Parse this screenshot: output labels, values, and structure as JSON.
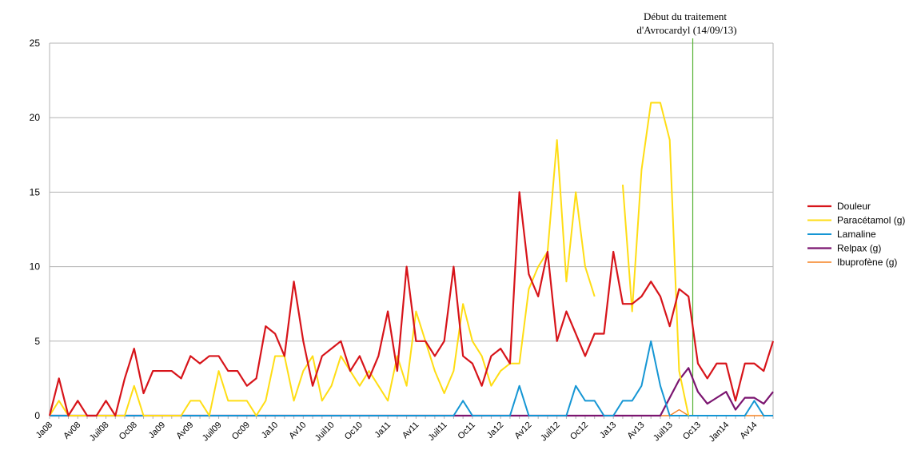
{
  "chart_data": {
    "type": "line",
    "title": "",
    "xlabel": "",
    "ylabel": "",
    "ylim": [
      0,
      25
    ],
    "yticks": [
      0,
      5,
      10,
      15,
      20,
      25
    ],
    "grid": true,
    "legend_position": "right",
    "x_tick_labels": [
      "Ja08",
      "Av08",
      "Juil08",
      "Oc08",
      "Ja09",
      "Av09",
      "Juil09",
      "Oc09",
      "Ja10",
      "Av10",
      "Juil10",
      "Oc10",
      "Ja11",
      "Av11",
      "Juil11",
      "Oc11",
      "Ja12",
      "Av12",
      "Juil12",
      "Oc12",
      "Ja13",
      "Av13",
      "Juil13",
      "Oc13",
      "Jan14",
      "Av14"
    ],
    "annotation": {
      "lines": [
        "Début du traitement",
        "d'Avrocardyl  (14/09/13)"
      ],
      "x_month_index": 68.45,
      "color": "#55b233"
    },
    "series": [
      {
        "name": "Douleur",
        "color": "#d7141a",
        "values": [
          0,
          2.5,
          0,
          1,
          0,
          0,
          1,
          0,
          2.5,
          4.5,
          1.5,
          3,
          3,
          3,
          2.5,
          4,
          3.5,
          4,
          4,
          3,
          3,
          2,
          2.5,
          6,
          5.5,
          4,
          9,
          5,
          2,
          4,
          4.5,
          5,
          3,
          4,
          2.5,
          4,
          7,
          3,
          10,
          5,
          5,
          4,
          5,
          10,
          4,
          3.5,
          2,
          4,
          4.5,
          3.5,
          15,
          9.5,
          8,
          11,
          5,
          7,
          5.5,
          4,
          5.5,
          5.5,
          11,
          7.5,
          7.5,
          8,
          9,
          8,
          6,
          8.5,
          8,
          3.5,
          2.5,
          3.5,
          3.5,
          1,
          3.5,
          3.5,
          3,
          5
        ]
      },
      {
        "name": "Paracétamol (g)",
        "color": "#ffdd14",
        "values": [
          0,
          1,
          0,
          0,
          0,
          0,
          0,
          0,
          0,
          2,
          0,
          0,
          0,
          0,
          0,
          1,
          1,
          0,
          3,
          1,
          1,
          1,
          0,
          1,
          4,
          4,
          1,
          3,
          4,
          1,
          2,
          4,
          3,
          2,
          3,
          2,
          1,
          4,
          2,
          7,
          5,
          3,
          1.5,
          3,
          7.5,
          5,
          4,
          2,
          3,
          3.5,
          3.5,
          8.5,
          10,
          11,
          18.5,
          9,
          15,
          10,
          8,
          null,
          null,
          15.5,
          7,
          16.5,
          21,
          21,
          18.5,
          3,
          0
        ]
      },
      {
        "name": "Lamaline",
        "color": "#1596d4",
        "values": [
          0,
          0,
          0,
          0,
          0,
          0,
          0,
          0,
          0,
          0,
          0,
          0,
          0,
          0,
          0,
          0,
          0,
          0,
          0,
          0,
          0,
          0,
          0,
          0,
          0,
          0,
          0,
          0,
          0,
          0,
          0,
          0,
          0,
          0,
          0,
          0,
          0,
          0,
          0,
          0,
          0,
          0,
          0,
          0,
          1,
          0,
          0,
          0,
          0,
          0,
          2,
          0,
          0,
          0,
          0,
          0,
          2,
          1,
          1,
          0,
          0,
          1,
          1,
          2,
          5,
          2,
          0,
          0,
          0,
          0,
          0,
          0,
          0,
          0,
          0,
          1,
          0,
          0
        ]
      },
      {
        "name": "Relpax (g)",
        "color": "#7b1570",
        "values": [
          0,
          0,
          0,
          0,
          0,
          0,
          0,
          0,
          0,
          0,
          0,
          0,
          0,
          0,
          0,
          0,
          0,
          0,
          0,
          0,
          0,
          0,
          0,
          0,
          0,
          0,
          0,
          0,
          0,
          0,
          0,
          0,
          0,
          0,
          0,
          0,
          0,
          0,
          0,
          0,
          0,
          0,
          0,
          0,
          0,
          0,
          0,
          0,
          0,
          0,
          0,
          0,
          0,
          0,
          0,
          0,
          0,
          0,
          0,
          0,
          0,
          0,
          0,
          0,
          0,
          0,
          1.2,
          2.4,
          3.2,
          1.6,
          0.8,
          1.2,
          1.6,
          0.4,
          1.2,
          1.2,
          0.8,
          1.6
        ]
      },
      {
        "name": "Ibuprofène (g)",
        "color": "#f58220",
        "values": [
          0,
          0,
          0,
          0,
          0,
          0,
          0,
          0,
          0,
          0,
          0,
          0,
          0,
          0,
          0,
          0,
          0,
          0,
          0,
          0,
          0,
          0,
          0,
          0,
          0,
          0,
          0,
          0,
          0,
          0,
          0,
          0,
          0,
          0,
          0,
          0,
          0,
          0,
          0,
          0,
          0,
          0,
          0,
          0,
          0,
          0,
          0,
          0,
          0,
          0,
          0,
          0,
          0,
          0,
          0,
          0,
          0,
          0,
          0,
          0,
          0,
          0,
          0,
          0,
          0,
          0,
          0,
          0.4,
          0,
          0,
          0,
          0,
          0,
          0,
          0,
          0,
          0,
          0
        ]
      }
    ]
  }
}
